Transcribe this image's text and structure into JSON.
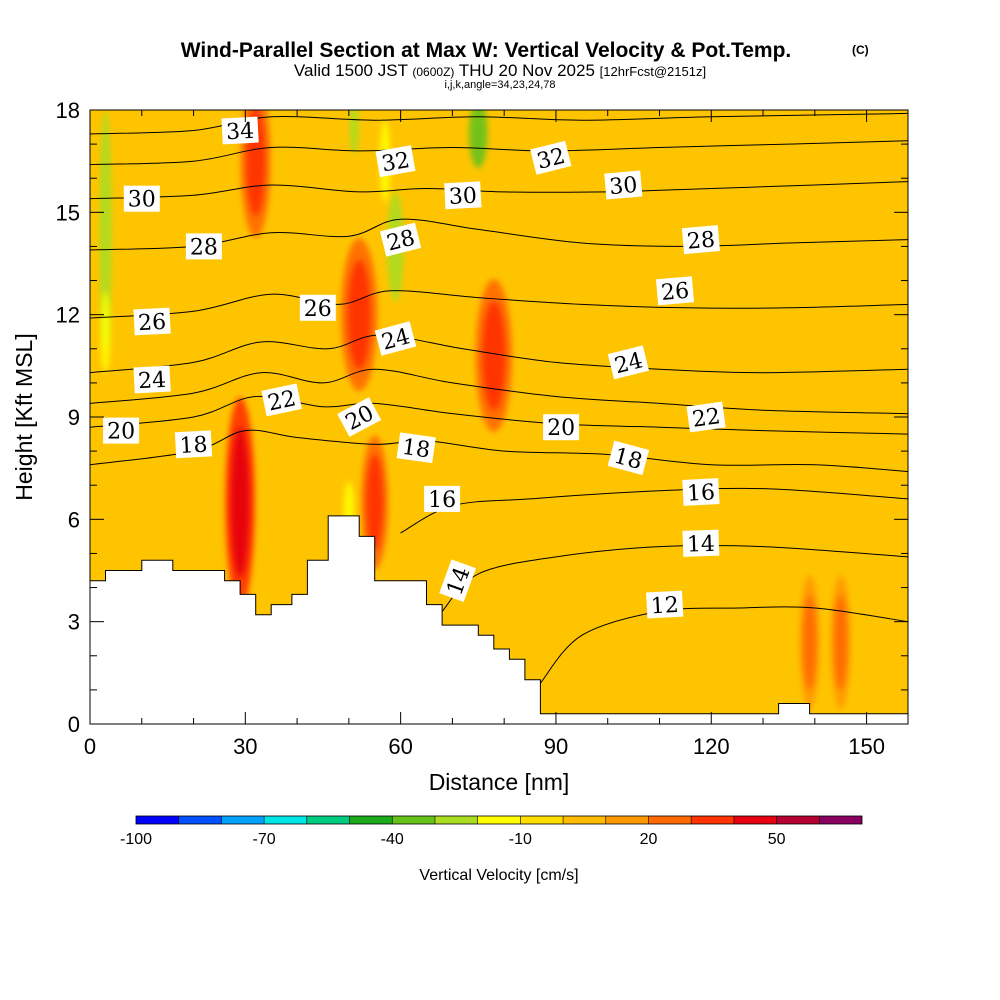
{
  "header": {
    "title": "Wind-Parallel Section at Max W: Vertical Velocity & Pot.Temp.",
    "copyright": "(C)",
    "valid_prefix": "Valid 1500 JST",
    "valid_utc": "(0600Z)",
    "valid_date": "THU 20 Nov 2025",
    "forecast": "[12hrFcst@2151z]",
    "indices": "i,j,k,angle=34,23,24,78"
  },
  "chart_data": {
    "type": "heatmap",
    "xlabel": "Distance [nm]",
    "ylabel": "Height [Kft MSL]",
    "xlim": [
      0,
      158
    ],
    "ylim": [
      0,
      18
    ],
    "xticks": [
      0,
      30,
      60,
      90,
      120,
      150
    ],
    "yticks": [
      0,
      3,
      6,
      9,
      12,
      15,
      18
    ],
    "colorbar": {
      "label": "Vertical Velocity [cm/s]",
      "range": [
        -100,
        70
      ],
      "step": 10,
      "tick_values": [
        -100,
        -70,
        -40,
        -10,
        20,
        50
      ],
      "colors": [
        "#0000ff",
        "#0050ff",
        "#00a0ff",
        "#00e6e6",
        "#00cc80",
        "#1aaa1a",
        "#66c21a",
        "#aadd22",
        "#ffff00",
        "#ffdd00",
        "#ffbb00",
        "#ff9900",
        "#ff6a00",
        "#ff3300",
        "#e60010",
        "#b30030",
        "#8a0060"
      ]
    },
    "terrain": [
      {
        "x": 0,
        "h": 4.2
      },
      {
        "x": 3,
        "h": 4.2
      },
      {
        "x": 3,
        "h": 4.5
      },
      {
        "x": 10,
        "h": 4.5
      },
      {
        "x": 10,
        "h": 4.8
      },
      {
        "x": 16,
        "h": 4.8
      },
      {
        "x": 16,
        "h": 4.5
      },
      {
        "x": 26,
        "h": 4.5
      },
      {
        "x": 26,
        "h": 4.2
      },
      {
        "x": 29,
        "h": 4.2
      },
      {
        "x": 29,
        "h": 3.8
      },
      {
        "x": 32,
        "h": 3.8
      },
      {
        "x": 32,
        "h": 3.2
      },
      {
        "x": 35,
        "h": 3.2
      },
      {
        "x": 35,
        "h": 3.5
      },
      {
        "x": 39,
        "h": 3.5
      },
      {
        "x": 39,
        "h": 3.8
      },
      {
        "x": 42,
        "h": 3.8
      },
      {
        "x": 42,
        "h": 4.8
      },
      {
        "x": 46,
        "h": 4.8
      },
      {
        "x": 46,
        "h": 6.1
      },
      {
        "x": 52,
        "h": 6.1
      },
      {
        "x": 52,
        "h": 5.5
      },
      {
        "x": 55,
        "h": 5.5
      },
      {
        "x": 55,
        "h": 4.2
      },
      {
        "x": 65,
        "h": 4.2
      },
      {
        "x": 65,
        "h": 3.5
      },
      {
        "x": 68,
        "h": 3.5
      },
      {
        "x": 68,
        "h": 2.9
      },
      {
        "x": 75,
        "h": 2.9
      },
      {
        "x": 75,
        "h": 2.6
      },
      {
        "x": 78,
        "h": 2.6
      },
      {
        "x": 78,
        "h": 2.2
      },
      {
        "x": 81,
        "h": 2.2
      },
      {
        "x": 81,
        "h": 1.9
      },
      {
        "x": 84,
        "h": 1.9
      },
      {
        "x": 84,
        "h": 1.3
      },
      {
        "x": 87,
        "h": 1.3
      },
      {
        "x": 87,
        "h": 0.3
      },
      {
        "x": 133,
        "h": 0.3
      },
      {
        "x": 133,
        "h": 0.6
      },
      {
        "x": 139,
        "h": 0.6
      },
      {
        "x": 139,
        "h": 0.3
      },
      {
        "x": 158,
        "h": 0.3
      }
    ],
    "updraft_cores": [
      {
        "x": 29,
        "y": 6.5,
        "rx": 1.8,
        "ry": 2.2,
        "w": 40
      },
      {
        "x": 32,
        "y": 16.5,
        "rx": 1.8,
        "ry": 1.6,
        "w": 30
      },
      {
        "x": 52,
        "y": 12.0,
        "rx": 2.2,
        "ry": 1.6,
        "w": 35
      },
      {
        "x": 55,
        "y": 6.5,
        "rx": 1.6,
        "ry": 1.4,
        "w": 30
      },
      {
        "x": 78,
        "y": 10.8,
        "rx": 2.2,
        "ry": 1.6,
        "w": 35
      },
      {
        "x": 145,
        "y": 2.4,
        "rx": 1.2,
        "ry": 1.4,
        "w": 25
      },
      {
        "x": 139,
        "y": 2.4,
        "rx": 1.2,
        "ry": 1.4,
        "w": 20
      }
    ],
    "downdraft_bands": [
      {
        "x": 3,
        "y": 14.5,
        "rx": 1.2,
        "ry": 3.5,
        "w": -25
      },
      {
        "x": 3,
        "y": 11.5,
        "rx": 0.9,
        "ry": 1.2,
        "w": -15
      },
      {
        "x": 51,
        "y": 17.5,
        "rx": 0.9,
        "ry": 0.8,
        "w": -30
      },
      {
        "x": 59,
        "y": 14.0,
        "rx": 1.6,
        "ry": 1.6,
        "w": -30
      },
      {
        "x": 57,
        "y": 16.5,
        "rx": 1.0,
        "ry": 1.2,
        "w": -15
      },
      {
        "x": 75,
        "y": 17.3,
        "rx": 1.8,
        "ry": 1.0,
        "w": -35
      },
      {
        "x": 50,
        "y": 6.3,
        "rx": 1.0,
        "ry": 0.8,
        "w": -20
      }
    ],
    "theta_contours": [
      {
        "level": 12,
        "points": [
          [
            87,
            1.2
          ],
          [
            95,
            2.6
          ],
          [
            110,
            3.3
          ],
          [
            125,
            3.4
          ],
          [
            140,
            3.4
          ],
          [
            158,
            3.0
          ]
        ]
      },
      {
        "level": 14,
        "points": [
          [
            68,
            3.3
          ],
          [
            75,
            4.4
          ],
          [
            90,
            4.9
          ],
          [
            110,
            5.2
          ],
          [
            130,
            5.2
          ],
          [
            158,
            4.9
          ]
        ]
      },
      {
        "level": 16,
        "points": [
          [
            60,
            5.6
          ],
          [
            70,
            6.4
          ],
          [
            85,
            6.6
          ],
          [
            105,
            6.8
          ],
          [
            130,
            6.9
          ],
          [
            158,
            6.6
          ]
        ]
      },
      {
        "level": 18,
        "points": [
          [
            0,
            7.6
          ],
          [
            20,
            8.0
          ],
          [
            30,
            8.6
          ],
          [
            40,
            8.4
          ],
          [
            55,
            8.2
          ],
          [
            65,
            8.3
          ],
          [
            80,
            8.0
          ],
          [
            100,
            7.9
          ],
          [
            120,
            7.6
          ],
          [
            140,
            7.6
          ],
          [
            158,
            7.4
          ]
        ]
      },
      {
        "level": 20,
        "points": [
          [
            0,
            8.7
          ],
          [
            20,
            9.0
          ],
          [
            32,
            9.6
          ],
          [
            45,
            9.3
          ],
          [
            55,
            9.4
          ],
          [
            70,
            9.1
          ],
          [
            90,
            8.8
          ],
          [
            110,
            8.7
          ],
          [
            130,
            8.6
          ],
          [
            158,
            8.5
          ]
        ]
      },
      {
        "level": 22,
        "points": [
          [
            0,
            9.4
          ],
          [
            20,
            9.7
          ],
          [
            33,
            10.3
          ],
          [
            45,
            10.0
          ],
          [
            55,
            10.4
          ],
          [
            70,
            10.0
          ],
          [
            90,
            9.6
          ],
          [
            110,
            9.4
          ],
          [
            130,
            9.2
          ],
          [
            158,
            9.1
          ]
        ]
      },
      {
        "level": 24,
        "points": [
          [
            0,
            10.3
          ],
          [
            20,
            10.6
          ],
          [
            33,
            11.2
          ],
          [
            46,
            11.0
          ],
          [
            56,
            11.4
          ],
          [
            72,
            11.0
          ],
          [
            90,
            10.6
          ],
          [
            110,
            10.4
          ],
          [
            130,
            10.3
          ],
          [
            158,
            10.4
          ]
        ]
      },
      {
        "level": 26,
        "points": [
          [
            0,
            11.9
          ],
          [
            20,
            12.1
          ],
          [
            35,
            12.6
          ],
          [
            48,
            12.3
          ],
          [
            58,
            12.7
          ],
          [
            75,
            12.5
          ],
          [
            95,
            12.3
          ],
          [
            115,
            12.2
          ],
          [
            135,
            12.2
          ],
          [
            158,
            12.3
          ]
        ]
      },
      {
        "level": 28,
        "points": [
          [
            0,
            13.9
          ],
          [
            20,
            14.0
          ],
          [
            35,
            14.4
          ],
          [
            50,
            14.3
          ],
          [
            60,
            14.8
          ],
          [
            75,
            14.5
          ],
          [
            95,
            14.1
          ],
          [
            115,
            14.0
          ],
          [
            135,
            14.1
          ],
          [
            158,
            14.2
          ]
        ]
      },
      {
        "level": 30,
        "points": [
          [
            0,
            15.4
          ],
          [
            20,
            15.5
          ],
          [
            35,
            15.8
          ],
          [
            52,
            15.6
          ],
          [
            65,
            15.7
          ],
          [
            80,
            15.6
          ],
          [
            100,
            15.6
          ],
          [
            120,
            15.7
          ],
          [
            140,
            15.8
          ],
          [
            158,
            15.9
          ]
        ]
      },
      {
        "level": 32,
        "points": [
          [
            0,
            16.4
          ],
          [
            20,
            16.5
          ],
          [
            35,
            16.9
          ],
          [
            52,
            16.8
          ],
          [
            70,
            16.9
          ],
          [
            88,
            16.8
          ],
          [
            110,
            16.9
          ],
          [
            135,
            17.0
          ],
          [
            158,
            17.1
          ]
        ]
      },
      {
        "level": 34,
        "points": [
          [
            0,
            17.3
          ],
          [
            20,
            17.4
          ],
          [
            35,
            17.8
          ],
          [
            55,
            17.7
          ],
          [
            75,
            17.8
          ],
          [
            95,
            17.7
          ],
          [
            120,
            17.8
          ],
          [
            158,
            17.9
          ]
        ]
      }
    ],
    "contour_labels": [
      {
        "text": "34",
        "x": 29,
        "y": 17.4,
        "angle": -3
      },
      {
        "text": "32",
        "x": 59,
        "y": 16.5,
        "angle": -10
      },
      {
        "text": "32",
        "x": 89,
        "y": 16.6,
        "angle": -14
      },
      {
        "text": "30",
        "x": 10,
        "y": 15.4,
        "angle": 0
      },
      {
        "text": "30",
        "x": 72,
        "y": 15.5,
        "angle": -3
      },
      {
        "text": "30",
        "x": 103,
        "y": 15.8,
        "angle": -5
      },
      {
        "text": "28",
        "x": 22,
        "y": 14.0,
        "angle": 0
      },
      {
        "text": "28",
        "x": 60,
        "y": 14.2,
        "angle": -14
      },
      {
        "text": "28",
        "x": 118,
        "y": 14.2,
        "angle": -5
      },
      {
        "text": "26",
        "x": 12,
        "y": 11.8,
        "angle": -3
      },
      {
        "text": "26",
        "x": 44,
        "y": 12.2,
        "angle": 0
      },
      {
        "text": "26",
        "x": 113,
        "y": 12.7,
        "angle": -5
      },
      {
        "text": "24",
        "x": 12,
        "y": 10.1,
        "angle": -3
      },
      {
        "text": "24",
        "x": 59,
        "y": 11.3,
        "angle": -15
      },
      {
        "text": "24",
        "x": 104,
        "y": 10.6,
        "angle": -14
      },
      {
        "text": "22",
        "x": 37,
        "y": 9.5,
        "angle": -12
      },
      {
        "text": "22",
        "x": 119,
        "y": 9.0,
        "angle": -8
      },
      {
        "text": "20",
        "x": 6,
        "y": 8.6,
        "angle": 0
      },
      {
        "text": "20",
        "x": 52,
        "y": 9.0,
        "angle": -28
      },
      {
        "text": "20",
        "x": 91,
        "y": 8.7,
        "angle": 0
      },
      {
        "text": "18",
        "x": 20,
        "y": 8.2,
        "angle": -3
      },
      {
        "text": "18",
        "x": 63,
        "y": 8.1,
        "angle": 8
      },
      {
        "text": "18",
        "x": 104,
        "y": 7.8,
        "angle": 15
      },
      {
        "text": "16",
        "x": 68,
        "y": 6.6,
        "angle": 0
      },
      {
        "text": "16",
        "x": 118,
        "y": 6.8,
        "angle": -3
      },
      {
        "text": "14",
        "x": 71,
        "y": 4.2,
        "angle": -70
      },
      {
        "text": "14",
        "x": 118,
        "y": 5.3,
        "angle": -2
      },
      {
        "text": "12",
        "x": 111,
        "y": 3.5,
        "angle": -3
      }
    ]
  }
}
